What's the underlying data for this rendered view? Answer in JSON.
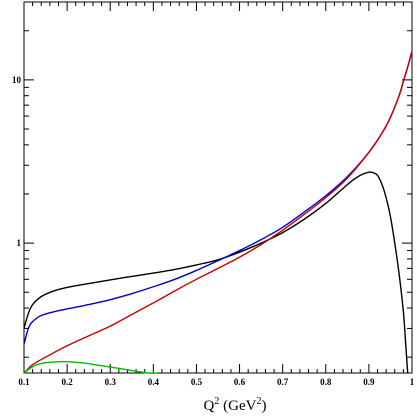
{
  "chart_data": {
    "type": "line",
    "title": "",
    "xlabel": {
      "parts": [
        {
          "text": "Q",
          "sup": false
        },
        {
          "text": "2",
          "sup": true
        },
        {
          "text": " (GeV",
          "sup": false
        },
        {
          "text": "2",
          "sup": true
        },
        {
          "text": ")",
          "sup": false
        }
      ]
    },
    "ylabel": "",
    "x_scale": "linear",
    "y_scale": "log",
    "xlim": [
      0.1,
      1.0
    ],
    "ylim": [
      0.16,
      30
    ],
    "x_ticks": [
      0.1,
      0.2,
      0.3,
      0.4,
      0.5,
      0.6,
      0.7,
      0.8,
      0.9,
      1.0
    ],
    "x_tick_labels": [
      "0.1",
      "0.2",
      "0.3",
      "0.4",
      "0.5",
      "0.6",
      "0.7",
      "0.8",
      "0.9",
      "1"
    ],
    "y_ticks": [
      1,
      10
    ],
    "y_tick_labels": [
      "1",
      "10"
    ],
    "grid": false,
    "series": [
      {
        "color": "#000000",
        "x": [
          0.1,
          0.11,
          0.12,
          0.14,
          0.17,
          0.2,
          0.25,
          0.3,
          0.35,
          0.4,
          0.45,
          0.5,
          0.55,
          0.6,
          0.65,
          0.7,
          0.75,
          0.8,
          0.83,
          0.86,
          0.88,
          0.9,
          0.91,
          0.92,
          0.93,
          0.94,
          0.95,
          0.96,
          0.97,
          0.98,
          0.985,
          0.99
        ],
        "y": [
          0.3,
          0.37,
          0.42,
          0.47,
          0.51,
          0.535,
          0.565,
          0.595,
          0.625,
          0.655,
          0.69,
          0.735,
          0.79,
          0.88,
          1.0,
          1.16,
          1.4,
          1.75,
          2.05,
          2.4,
          2.6,
          2.72,
          2.7,
          2.6,
          2.3,
          1.9,
          1.45,
          1.0,
          0.65,
          0.38,
          0.25,
          0.16
        ]
      },
      {
        "color": "#0000cc",
        "x": [
          0.1,
          0.11,
          0.12,
          0.14,
          0.17,
          0.2,
          0.25,
          0.3,
          0.35,
          0.4,
          0.45,
          0.5,
          0.55,
          0.6,
          0.65,
          0.7,
          0.75,
          0.8,
          0.85,
          0.9,
          0.93,
          0.95,
          0.97,
          0.98,
          0.99,
          1.0
        ],
        "y": [
          0.24,
          0.3,
          0.33,
          0.36,
          0.38,
          0.395,
          0.42,
          0.45,
          0.49,
          0.54,
          0.6,
          0.68,
          0.78,
          0.9,
          1.05,
          1.25,
          1.55,
          1.95,
          2.55,
          3.6,
          4.7,
          5.9,
          8.0,
          9.8,
          12.0,
          15.0
        ]
      },
      {
        "color": "#cc0000",
        "x": [
          0.1,
          0.12,
          0.15,
          0.2,
          0.25,
          0.3,
          0.35,
          0.4,
          0.45,
          0.5,
          0.55,
          0.6,
          0.65,
          0.7,
          0.75,
          0.8,
          0.85,
          0.9,
          0.93,
          0.95,
          0.97,
          0.98,
          0.99,
          1.0
        ],
        "y": [
          0.16,
          0.18,
          0.2,
          0.235,
          0.27,
          0.31,
          0.365,
          0.43,
          0.51,
          0.6,
          0.7,
          0.82,
          0.98,
          1.2,
          1.5,
          1.9,
          2.5,
          3.6,
          4.7,
          5.9,
          8.0,
          9.8,
          12.0,
          15.0
        ]
      },
      {
        "color": "#00bb00",
        "x": [
          0.1,
          0.11,
          0.12,
          0.13,
          0.15,
          0.17,
          0.19,
          0.21,
          0.24,
          0.27,
          0.3,
          0.33,
          0.36,
          0.39,
          0.41
        ],
        "y": [
          0.16,
          0.168,
          0.175,
          0.18,
          0.185,
          0.187,
          0.188,
          0.187,
          0.184,
          0.179,
          0.174,
          0.169,
          0.164,
          0.16,
          0.158
        ]
      }
    ]
  }
}
